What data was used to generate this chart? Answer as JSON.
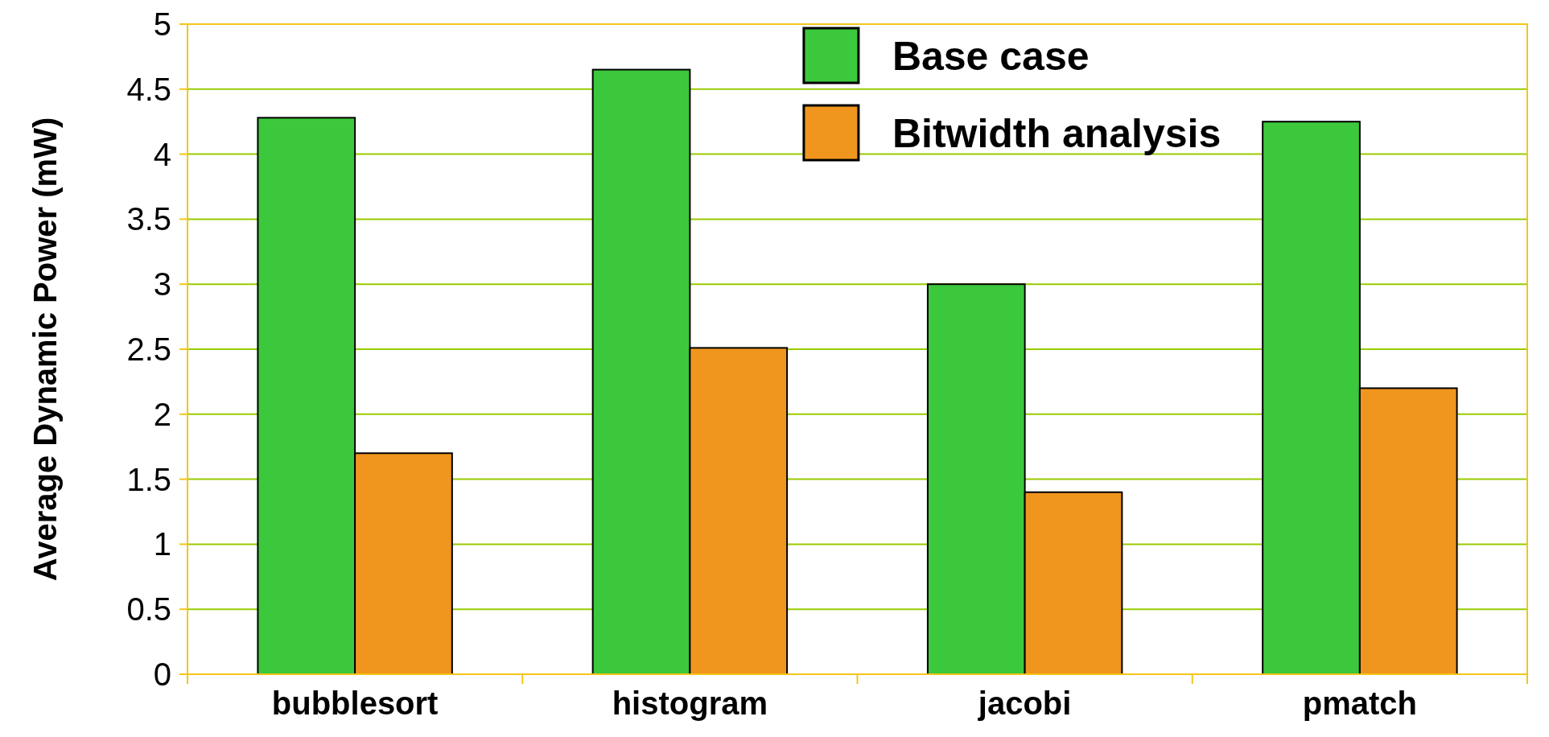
{
  "chart_data": {
    "type": "bar",
    "ylabel": "Average Dynamic Power (mW)",
    "categories": [
      "bubblesort",
      "histogram",
      "jacobi",
      "pmatch"
    ],
    "series": [
      {
        "name": "Base case",
        "color": "#3cc83c",
        "values": [
          4.28,
          4.65,
          3.0,
          4.25
        ]
      },
      {
        "name": "Bitwidth analysis",
        "color": "#f0961e",
        "values": [
          1.7,
          2.51,
          1.4,
          2.2
        ]
      }
    ],
    "ylim": [
      0,
      5
    ],
    "yticks": [
      0,
      0.5,
      1,
      1.5,
      2,
      2.5,
      3,
      3.5,
      4,
      4.5,
      5
    ],
    "grid": "y",
    "legend": "top"
  }
}
